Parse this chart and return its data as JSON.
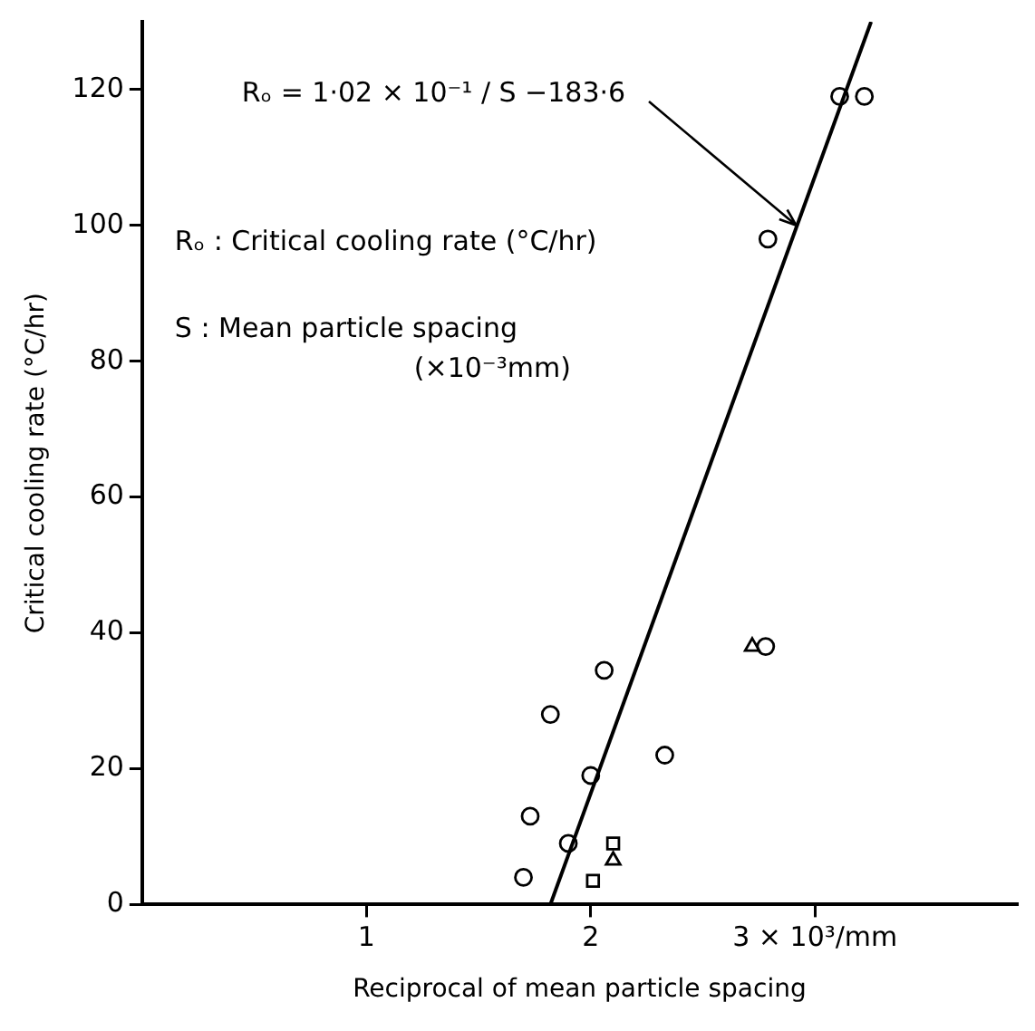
{
  "chart_data": {
    "type": "scatter",
    "xlabel": "Reciprocal of mean particle spacing",
    "ylabel": "Critical cooling rate (°C/hr)",
    "xlim": [
      0,
      3.9
    ],
    "ylim": [
      0,
      130
    ],
    "xticks": [
      {
        "value": 1,
        "label": "1"
      },
      {
        "value": 2,
        "label": "2"
      },
      {
        "value": 3,
        "label": "3 × 10³/mm"
      }
    ],
    "yticks": [
      0,
      20,
      40,
      60,
      80,
      100,
      120
    ],
    "grid": false,
    "legend": false,
    "series": [
      {
        "type": "scatter",
        "marker": "circle",
        "color": "#000000",
        "x": [
          3.11,
          3.22,
          2.79,
          2.78,
          2.06,
          1.82,
          2.33,
          2.0,
          1.73,
          1.9,
          1.7
        ],
        "values": [
          119,
          119,
          98,
          38,
          34.5,
          28,
          22,
          19,
          13,
          9,
          4
        ]
      },
      {
        "type": "scatter",
        "marker": "triangle",
        "color": "#000000",
        "x": [
          2.72,
          2.1
        ],
        "values": [
          38,
          6.5
        ]
      },
      {
        "type": "scatter",
        "marker": "square",
        "color": "#000000",
        "x": [
          2.1,
          2.01
        ],
        "values": [
          9,
          3.5
        ]
      },
      {
        "type": "line",
        "marker": "none",
        "line_style": "solid",
        "color": "#000000",
        "x": [
          1.82,
          3.25
        ],
        "values": [
          0,
          130
        ]
      }
    ],
    "annotations": [
      {
        "text": "Rₒ = 1·02 × 10⁻¹ / S  −183·6",
        "x": 2.92,
        "y": 100
      },
      "Rₒ : Critical cooling rate (°C/hr)",
      "S : Mean particle spacing",
      "(×10⁻³mm)"
    ]
  }
}
